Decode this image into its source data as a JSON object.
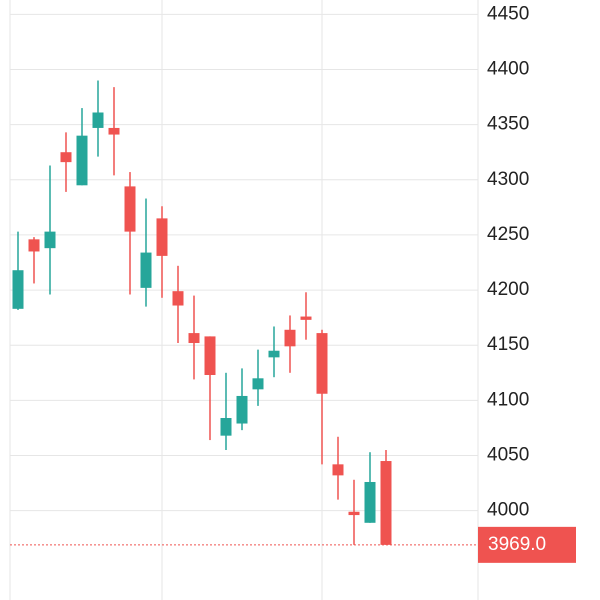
{
  "chart_data": {
    "type": "candlestick",
    "up_color": "#26a69a",
    "down_color": "#ef5350",
    "open": [
      4183,
      4246,
      4238,
      4325,
      4295,
      4347,
      4347,
      4294,
      4202,
      4265,
      4199,
      4161,
      4158,
      4068,
      4079,
      4110,
      4139,
      4164,
      4176,
      4161,
      4042,
      3999,
      3989,
      4045
    ],
    "high": [
      4253,
      4248,
      4313,
      4343,
      4365,
      4390,
      4384,
      4307,
      4283,
      4276,
      4222,
      4195,
      4158,
      4125,
      4129,
      4146,
      4167,
      4177,
      4198,
      4164,
      4067,
      4028,
      4053,
      4055
    ],
    "low": [
      4182,
      4206,
      4196,
      4289,
      4295,
      4321,
      4304,
      4196,
      4185,
      4193,
      4152,
      4119,
      4064,
      4055,
      4073,
      4095,
      4121,
      4125,
      4155,
      4042,
      4010,
      3969,
      3989,
      3969
    ],
    "close": [
      4218,
      4235,
      4253,
      4316,
      4340,
      4361,
      4341,
      4253,
      4234,
      4231,
      4186,
      4152,
      4123,
      4084,
      4104,
      4120,
      4145,
      4149,
      4173,
      4106,
      4032,
      3996,
      4026,
      3969
    ],
    "last_price": {
      "value": 3969,
      "label": "3969.0"
    },
    "ylim": [
      3919,
      4463
    ],
    "yticks": [
      4000,
      4050,
      4100,
      4150,
      4200,
      4250,
      4300,
      4350,
      4400,
      4450
    ],
    "grid": true
  }
}
